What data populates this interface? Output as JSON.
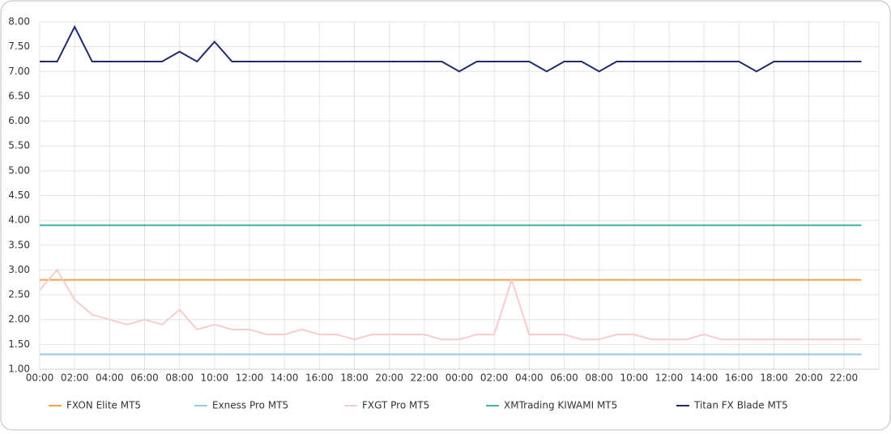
{
  "chart_data": {
    "type": "line",
    "categories": [
      "00:00",
      null,
      "02:00",
      null,
      "04:00",
      null,
      "06:00",
      null,
      "08:00",
      null,
      "10:00",
      null,
      "12:00",
      null,
      "14:00",
      null,
      "16:00",
      null,
      "18:00",
      null,
      "20:00",
      null,
      "22:00",
      null,
      "00:00",
      null,
      "02:00",
      null,
      "04:00",
      null,
      "06:00",
      null,
      "08:00",
      null,
      "10:00",
      null,
      "12:00",
      null,
      "14:00",
      null,
      "16:00",
      null,
      "18:00",
      null,
      "20:00",
      null,
      "22:00",
      null
    ],
    "series": [
      {
        "name": "FXON Elite MT5",
        "color": "#f5a04a",
        "values": [
          2.8,
          2.8,
          2.8,
          2.8,
          2.8,
          2.8,
          2.8,
          2.8,
          2.8,
          2.8,
          2.8,
          2.8,
          2.8,
          2.8,
          2.8,
          2.8,
          2.8,
          2.8,
          2.8,
          2.8,
          2.8,
          2.8,
          2.8,
          2.8,
          2.8,
          2.8,
          2.8,
          2.8,
          2.8,
          2.8,
          2.8,
          2.8,
          2.8,
          2.8,
          2.8,
          2.8,
          2.8,
          2.8,
          2.8,
          2.8,
          2.8,
          2.8,
          2.8,
          2.8,
          2.8,
          2.8,
          2.8,
          2.8
        ]
      },
      {
        "name": "Exness Pro MT5",
        "color": "#93c9e6",
        "values": [
          1.3,
          1.3,
          1.3,
          1.3,
          1.3,
          1.3,
          1.3,
          1.3,
          1.3,
          1.3,
          1.3,
          1.3,
          1.3,
          1.3,
          1.3,
          1.3,
          1.3,
          1.3,
          1.3,
          1.3,
          1.3,
          1.3,
          1.3,
          1.3,
          1.3,
          1.3,
          1.3,
          1.3,
          1.3,
          1.3,
          1.3,
          1.3,
          1.3,
          1.3,
          1.3,
          1.3,
          1.3,
          1.3,
          1.3,
          1.3,
          1.3,
          1.3,
          1.3,
          1.3,
          1.3,
          1.3,
          1.3,
          1.3
        ]
      },
      {
        "name": "FXGT Pro MT5",
        "color": "#f7cccc",
        "values": [
          2.6,
          3.0,
          2.4,
          2.1,
          2.0,
          1.9,
          2.0,
          1.9,
          2.2,
          1.8,
          1.9,
          1.8,
          1.8,
          1.7,
          1.7,
          1.8,
          1.7,
          1.7,
          1.6,
          1.7,
          1.7,
          1.7,
          1.7,
          1.6,
          1.6,
          1.7,
          1.7,
          2.8,
          1.7,
          1.7,
          1.7,
          1.6,
          1.6,
          1.7,
          1.7,
          1.6,
          1.6,
          1.6,
          1.7,
          1.6,
          1.6,
          1.6,
          1.6,
          1.6,
          1.6,
          1.6,
          1.6,
          1.6
        ]
      },
      {
        "name": "XMTrading KIWAMI MT5",
        "color": "#3db3b0",
        "values": [
          3.9,
          3.9,
          3.9,
          3.9,
          3.9,
          3.9,
          3.9,
          3.9,
          3.9,
          3.9,
          3.9,
          3.9,
          3.9,
          3.9,
          3.9,
          3.9,
          3.9,
          3.9,
          3.9,
          3.9,
          3.9,
          3.9,
          3.9,
          3.9,
          3.9,
          3.9,
          3.9,
          3.9,
          3.9,
          3.9,
          3.9,
          3.9,
          3.9,
          3.9,
          3.9,
          3.9,
          3.9,
          3.9,
          3.9,
          3.9,
          3.9,
          3.9,
          3.9,
          3.9,
          3.9,
          3.9,
          3.9,
          3.9
        ]
      },
      {
        "name": "Titan FX Blade MT5",
        "color": "#1f2a6e",
        "values": [
          7.2,
          7.2,
          7.9,
          7.2,
          7.2,
          7.2,
          7.2,
          7.2,
          7.4,
          7.2,
          7.6,
          7.2,
          7.2,
          7.2,
          7.2,
          7.2,
          7.2,
          7.2,
          7.2,
          7.2,
          7.2,
          7.2,
          7.2,
          7.2,
          7.0,
          7.2,
          7.2,
          7.2,
          7.2,
          7.0,
          7.2,
          7.2,
          7.0,
          7.2,
          7.2,
          7.2,
          7.2,
          7.2,
          7.2,
          7.2,
          7.2,
          7.0,
          7.2,
          7.2,
          7.2,
          7.2,
          7.2,
          7.2
        ]
      }
    ],
    "ylim": [
      1,
      8
    ],
    "yticks": [
      {
        "value": 1,
        "label": "1.00"
      },
      {
        "value": 1.5,
        "label": "1.50"
      },
      {
        "value": 2,
        "label": "2.00"
      },
      {
        "value": 2.5,
        "label": "2.50"
      },
      {
        "value": 3,
        "label": "3.00"
      },
      {
        "value": 3.5,
        "label": "3.50"
      },
      {
        "value": 4,
        "label": "4.00"
      },
      {
        "value": 4.5,
        "label": "4.50"
      },
      {
        "value": 5,
        "label": "5.00"
      },
      {
        "value": 5.5,
        "label": "5.50"
      },
      {
        "value": 6,
        "label": "6.00"
      },
      {
        "value": 6.5,
        "label": "6.50"
      },
      {
        "value": 7,
        "label": "7.00"
      },
      {
        "value": 7.5,
        "label": "7.50"
      },
      {
        "value": 8,
        "label": "8.00"
      }
    ],
    "grid": true,
    "legend": "bottom"
  }
}
